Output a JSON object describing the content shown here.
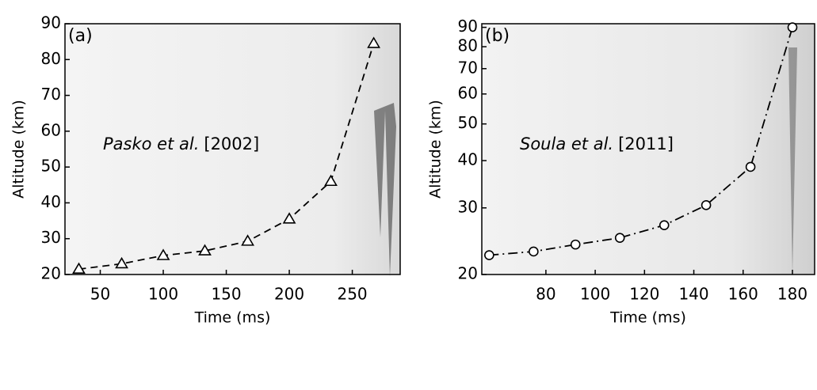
{
  "chart_data": [
    {
      "type": "line",
      "panel_label": "(a)",
      "annotation": [
        "Pasko et al.",
        "[2002]"
      ],
      "xlabel": "Time (ms)",
      "ylabel": "Altitude (km)",
      "x": [
        33,
        67,
        100,
        133,
        167,
        200,
        233,
        267
      ],
      "series": [
        {
          "color": "#000000",
          "values": [
            21.5,
            23,
            25.3,
            26.6,
            29.3,
            35.5,
            46,
            84.5
          ]
        }
      ],
      "line_style": "dashed",
      "marker": "triangle",
      "xlim": [
        22,
        288
      ],
      "xticks": [
        50,
        100,
        150,
        200,
        250
      ],
      "ylim": [
        20,
        90
      ],
      "yticks": [
        20,
        30,
        40,
        50,
        60,
        70,
        80,
        90
      ],
      "yscale": "linear"
    },
    {
      "type": "line",
      "panel_label": "(b)",
      "annotation": [
        "Soula et al.",
        "[2011]"
      ],
      "xlabel": "Time (ms)",
      "ylabel": "Altitude (km)",
      "x": [
        57,
        75,
        92,
        110,
        128,
        145,
        163,
        180
      ],
      "series": [
        {
          "color": "#000000",
          "values": [
            22.5,
            23,
            24,
            25,
            27,
            30.5,
            38.5,
            90
          ]
        }
      ],
      "line_style": "dashdot",
      "marker": "circle",
      "xlim": [
        54,
        189
      ],
      "xticks": [
        80,
        100,
        120,
        140,
        160,
        180
      ],
      "ylim": [
        20,
        92
      ],
      "yticks": [
        20,
        30,
        40,
        50,
        60,
        70,
        80,
        90
      ],
      "yscale": "log"
    }
  ]
}
